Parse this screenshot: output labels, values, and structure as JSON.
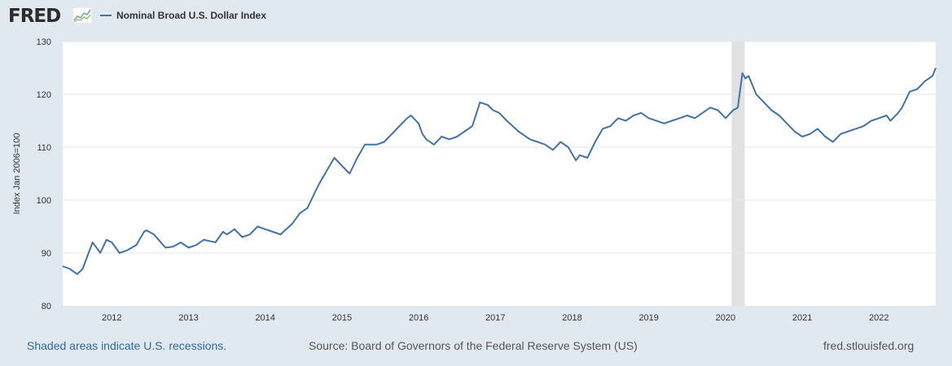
{
  "header": {
    "logo_text": "FRED",
    "logo_icon": "fred-graph-icon",
    "legend_label": "Nominal Broad U.S. Dollar Index"
  },
  "footer": {
    "recessions_link": "Shaded areas indicate U.S. recessions.",
    "source": "Source: Board of Governors of the Federal Reserve System (US)",
    "site": "fred.stlouisfed.org"
  },
  "colors": {
    "background": "#e1e9f0",
    "plot_background": "#ffffff",
    "series_line": "#4572a7",
    "recession_shade": "#e1e1e1",
    "gridline": "#e6e6e6"
  },
  "chart_data": {
    "type": "line",
    "xlabel": "",
    "ylabel": "Index Jan 2006=100",
    "ylim": [
      80,
      130
    ],
    "yticks": [
      "80",
      "90",
      "100",
      "110",
      "120",
      "130"
    ],
    "xlim": [
      2011.36,
      2022.74
    ],
    "xticks": [
      "2012",
      "2013",
      "2014",
      "2015",
      "2016",
      "2017",
      "2018",
      "2019",
      "2020",
      "2021",
      "2022"
    ],
    "grid": "horizontal",
    "recessions": [
      [
        2020.08,
        2020.25
      ]
    ],
    "series": [
      {
        "name": "Nominal Broad U.S. Dollar Index",
        "x": [
          2011.36,
          2011.45,
          2011.55,
          2011.62,
          2011.75,
          2011.85,
          2011.93,
          2012.0,
          2012.1,
          2012.2,
          2012.32,
          2012.42,
          2012.45,
          2012.55,
          2012.7,
          2012.8,
          2012.9,
          2013.0,
          2013.1,
          2013.2,
          2013.35,
          2013.45,
          2013.5,
          2013.6,
          2013.7,
          2013.8,
          2013.9,
          2014.0,
          2014.1,
          2014.2,
          2014.35,
          2014.45,
          2014.55,
          2014.6,
          2014.7,
          2014.8,
          2014.9,
          2015.0,
          2015.1,
          2015.2,
          2015.3,
          2015.45,
          2015.55,
          2015.65,
          2015.75,
          2015.85,
          2015.9,
          2016.0,
          2016.05,
          2016.1,
          2016.2,
          2016.3,
          2016.4,
          2016.5,
          2016.6,
          2016.7,
          2016.8,
          2016.9,
          2016.97,
          2017.05,
          2017.15,
          2017.3,
          2017.45,
          2017.55,
          2017.65,
          2017.75,
          2017.85,
          2017.95,
          2018.05,
          2018.1,
          2018.2,
          2018.3,
          2018.4,
          2018.5,
          2018.6,
          2018.7,
          2018.8,
          2018.9,
          2019.0,
          2019.1,
          2019.2,
          2019.3,
          2019.4,
          2019.5,
          2019.6,
          2019.7,
          2019.8,
          2019.9,
          2020.0,
          2020.1,
          2020.16,
          2020.22,
          2020.26,
          2020.3,
          2020.4,
          2020.5,
          2020.6,
          2020.7,
          2020.8,
          2020.9,
          2021.0,
          2021.1,
          2021.2,
          2021.3,
          2021.4,
          2021.5,
          2021.6,
          2021.7,
          2021.8,
          2021.9,
          2022.0,
          2022.1,
          2022.15,
          2022.25,
          2022.3,
          2022.4,
          2022.5,
          2022.6,
          2022.7,
          2022.74
        ],
        "y": [
          87.5,
          87.0,
          86.0,
          87.0,
          92.0,
          90.0,
          92.5,
          92.0,
          90.0,
          90.5,
          91.5,
          94.0,
          94.3,
          93.5,
          91.0,
          91.2,
          92.0,
          91.0,
          91.5,
          92.5,
          92.0,
          94.0,
          93.5,
          94.5,
          93.0,
          93.5,
          95.0,
          94.5,
          94.0,
          93.5,
          95.5,
          97.5,
          98.5,
          100.0,
          103.0,
          105.5,
          108.0,
          106.5,
          105.0,
          108.0,
          110.5,
          110.5,
          111.0,
          112.5,
          114.0,
          115.5,
          116.0,
          114.5,
          112.5,
          111.5,
          110.5,
          112.0,
          111.5,
          112.0,
          113.0,
          114.0,
          118.5,
          118.0,
          117.0,
          116.5,
          115.0,
          113.0,
          111.5,
          111.0,
          110.5,
          109.5,
          111.0,
          110.0,
          107.5,
          108.5,
          108.0,
          111.0,
          113.5,
          114.0,
          115.5,
          115.0,
          116.0,
          116.5,
          115.5,
          115.0,
          114.5,
          115.0,
          115.5,
          116.0,
          115.5,
          116.5,
          117.5,
          117.0,
          115.5,
          117.0,
          117.5,
          124.0,
          123.0,
          123.5,
          120.0,
          118.5,
          117.0,
          116.0,
          114.5,
          113.0,
          112.0,
          112.5,
          113.5,
          112.0,
          111.0,
          112.5,
          113.0,
          113.5,
          114.0,
          115.0,
          115.5,
          116.0,
          115.0,
          116.5,
          117.5,
          120.5,
          121.0,
          122.5,
          123.5,
          125.0
        ]
      }
    ]
  }
}
